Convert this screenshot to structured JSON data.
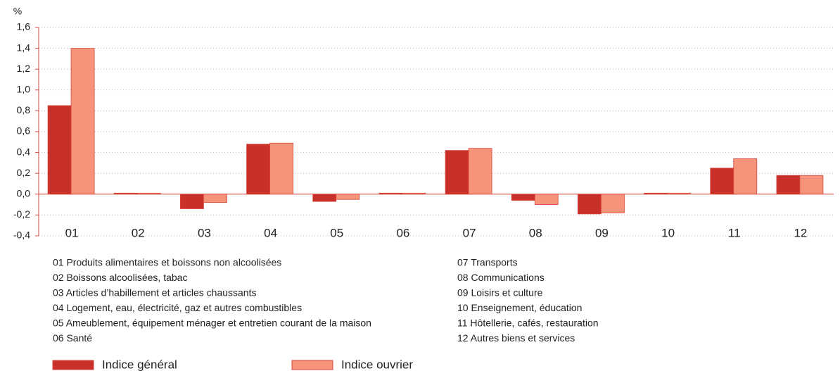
{
  "chart_data": {
    "type": "bar",
    "y_unit": "%",
    "categories": [
      "01",
      "02",
      "03",
      "04",
      "05",
      "06",
      "07",
      "08",
      "09",
      "10",
      "11",
      "12"
    ],
    "series": [
      {
        "name": "Indice général",
        "color": "#c8312a",
        "values": [
          0.85,
          0.01,
          -0.14,
          0.48,
          -0.07,
          0.01,
          0.42,
          -0.06,
          -0.19,
          0.01,
          0.25,
          0.18
        ]
      },
      {
        "name": "Indice ouvrier",
        "color": "#f6937b",
        "values": [
          1.4,
          0.01,
          -0.08,
          0.49,
          -0.05,
          0.01,
          0.44,
          -0.1,
          -0.18,
          0.01,
          0.34,
          0.18
        ]
      }
    ],
    "ylim": [
      -0.4,
      1.6
    ],
    "yticks": [
      {
        "value": -0.4,
        "label": "-0,4"
      },
      {
        "value": -0.2,
        "label": "-0,2"
      },
      {
        "value": 0,
        "label": "0,0"
      },
      {
        "value": 0.2,
        "label": "0,2"
      },
      {
        "value": 0.4,
        "label": "0,4"
      },
      {
        "value": 0.6,
        "label": "0,6"
      },
      {
        "value": 0.8,
        "label": "0,8"
      },
      {
        "value": 1.0,
        "label": "1,0"
      },
      {
        "value": 1.2,
        "label": "1,2"
      },
      {
        "value": 1.4,
        "label": "1,4"
      },
      {
        "value": 1.6,
        "label": "1,6"
      }
    ],
    "grid": true,
    "notes": [
      "01 Produits alimentaires et boissons non alcoolisées",
      "02 Boissons alcoolisées, tabac",
      "03 Articles d’habillement et articles chaussants",
      "04 Logement, eau, électricité, gaz et autres combustibles",
      "05 Ameublement, équipement ménager et entretien courant de la maison",
      "06 Santé",
      "07 Transports",
      "08 Communications",
      "09 Loisirs et culture",
      "10 Enseignement, éducation",
      "11 Hôtellerie, cafés, restauration",
      "12 Autres biens et services"
    ]
  }
}
